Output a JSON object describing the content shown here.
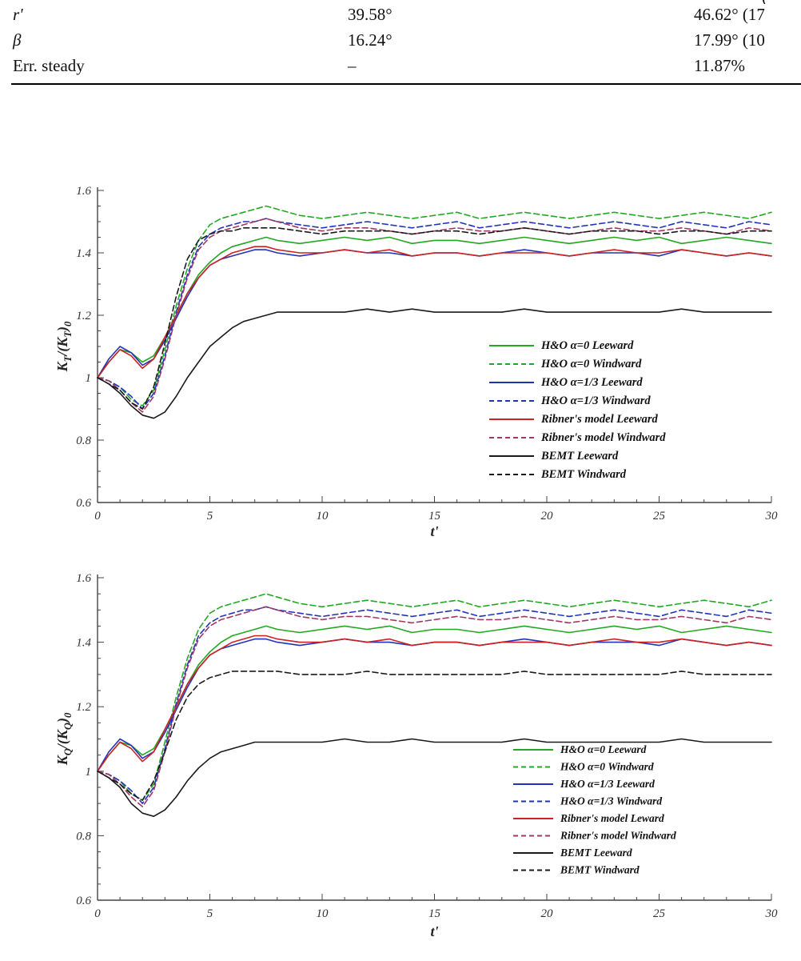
{
  "table": {
    "partial_fragments": [
      "("
    ],
    "rows": [
      {
        "label": "r'",
        "col1": "39.58°",
        "col2": "46.62° (17"
      },
      {
        "label": "β",
        "col1": "16.24°",
        "col2": "17.99° (10"
      },
      {
        "label": "Err. steady",
        "col1": "–",
        "col2": "11.87%"
      }
    ]
  },
  "chart_data": [
    {
      "type": "line",
      "title": "",
      "xlabel": "t'",
      "ylabel": "K_T/(K_T)_0",
      "xlim": [
        0,
        30
      ],
      "ylim": [
        0.6,
        1.6
      ],
      "xtick_major": 5,
      "xtick_minor": 1,
      "ytick_major": 0.2,
      "ytick_minor": 0.05,
      "grid": false,
      "legend_position": "inside-right-middle",
      "x": [
        0,
        0.5,
        1,
        1.5,
        2,
        2.5,
        3,
        3.5,
        4,
        4.5,
        5,
        5.5,
        6,
        6.5,
        7,
        7.5,
        8,
        9,
        10,
        11,
        12,
        13,
        14,
        15,
        16,
        17,
        18,
        19,
        20,
        21,
        22,
        23,
        24,
        25,
        26,
        27,
        28,
        29,
        30
      ],
      "series": [
        {
          "name": "H&O α=0 Leeward",
          "color": "#22a822",
          "dash": false,
          "values": [
            1.0,
            1.05,
            1.09,
            1.08,
            1.05,
            1.07,
            1.13,
            1.2,
            1.27,
            1.33,
            1.37,
            1.4,
            1.42,
            1.43,
            1.44,
            1.45,
            1.44,
            1.43,
            1.44,
            1.45,
            1.44,
            1.45,
            1.43,
            1.44,
            1.44,
            1.43,
            1.44,
            1.45,
            1.44,
            1.43,
            1.44,
            1.45,
            1.44,
            1.45,
            1.43,
            1.44,
            1.45,
            1.44,
            1.43
          ]
        },
        {
          "name": "H&O α=0 Windward",
          "color": "#22a822",
          "dash": true,
          "values": [
            1.0,
            0.99,
            0.97,
            0.93,
            0.91,
            0.96,
            1.09,
            1.23,
            1.35,
            1.44,
            1.49,
            1.51,
            1.52,
            1.53,
            1.54,
            1.55,
            1.54,
            1.52,
            1.51,
            1.52,
            1.53,
            1.52,
            1.51,
            1.52,
            1.53,
            1.51,
            1.52,
            1.53,
            1.52,
            1.51,
            1.52,
            1.53,
            1.52,
            1.51,
            1.52,
            1.53,
            1.52,
            1.51,
            1.53
          ]
        },
        {
          "name": "H&O α=1/3 Leeward",
          "color": "#2233bb",
          "dash": false,
          "values": [
            1.0,
            1.06,
            1.1,
            1.08,
            1.04,
            1.06,
            1.12,
            1.19,
            1.26,
            1.32,
            1.36,
            1.38,
            1.39,
            1.4,
            1.41,
            1.41,
            1.4,
            1.39,
            1.4,
            1.41,
            1.4,
            1.4,
            1.39,
            1.4,
            1.4,
            1.39,
            1.4,
            1.41,
            1.4,
            1.39,
            1.4,
            1.4,
            1.4,
            1.39,
            1.41,
            1.4,
            1.39,
            1.4,
            1.39
          ]
        },
        {
          "name": "H&O α=1/3 Windward",
          "color": "#2233bb",
          "dash": true,
          "values": [
            1.0,
            0.99,
            0.97,
            0.94,
            0.9,
            0.95,
            1.07,
            1.21,
            1.33,
            1.42,
            1.46,
            1.48,
            1.49,
            1.5,
            1.5,
            1.51,
            1.5,
            1.49,
            1.48,
            1.49,
            1.5,
            1.49,
            1.48,
            1.49,
            1.5,
            1.48,
            1.49,
            1.5,
            1.49,
            1.48,
            1.49,
            1.5,
            1.49,
            1.48,
            1.5,
            1.49,
            1.48,
            1.5,
            1.49
          ]
        },
        {
          "name": "Ribner's model Leeward",
          "color": "#cc2222",
          "dash": false,
          "values": [
            1.0,
            1.05,
            1.09,
            1.07,
            1.03,
            1.06,
            1.13,
            1.2,
            1.27,
            1.32,
            1.36,
            1.38,
            1.4,
            1.41,
            1.42,
            1.42,
            1.41,
            1.4,
            1.4,
            1.41,
            1.4,
            1.41,
            1.39,
            1.4,
            1.4,
            1.39,
            1.4,
            1.4,
            1.4,
            1.39,
            1.4,
            1.41,
            1.4,
            1.4,
            1.41,
            1.4,
            1.39,
            1.4,
            1.39
          ]
        },
        {
          "name": "Ribner's model Windward",
          "color": "#a03866",
          "dash": true,
          "values": [
            1.0,
            0.99,
            0.96,
            0.92,
            0.89,
            0.94,
            1.06,
            1.2,
            1.32,
            1.41,
            1.45,
            1.47,
            1.48,
            1.49,
            1.5,
            1.51,
            1.5,
            1.48,
            1.47,
            1.48,
            1.48,
            1.47,
            1.46,
            1.47,
            1.48,
            1.47,
            1.47,
            1.48,
            1.47,
            1.46,
            1.47,
            1.48,
            1.47,
            1.47,
            1.48,
            1.47,
            1.46,
            1.48,
            1.47
          ]
        },
        {
          "name": "BEMT Leeward",
          "color": "#1a1a1a",
          "dash": false,
          "values": [
            1.0,
            0.98,
            0.95,
            0.91,
            0.88,
            0.87,
            0.89,
            0.94,
            1.0,
            1.05,
            1.1,
            1.13,
            1.16,
            1.18,
            1.19,
            1.2,
            1.21,
            1.21,
            1.21,
            1.21,
            1.22,
            1.21,
            1.22,
            1.21,
            1.21,
            1.21,
            1.21,
            1.22,
            1.21,
            1.21,
            1.21,
            1.21,
            1.21,
            1.21,
            1.22,
            1.21,
            1.21,
            1.21,
            1.21
          ]
        },
        {
          "name": "BEMT Windward",
          "color": "#1a1a1a",
          "dash": true,
          "values": [
            1.0,
            0.98,
            0.96,
            0.92,
            0.9,
            0.97,
            1.11,
            1.26,
            1.38,
            1.44,
            1.46,
            1.47,
            1.47,
            1.48,
            1.48,
            1.48,
            1.48,
            1.47,
            1.46,
            1.47,
            1.47,
            1.47,
            1.46,
            1.47,
            1.47,
            1.46,
            1.47,
            1.48,
            1.47,
            1.46,
            1.47,
            1.47,
            1.47,
            1.46,
            1.47,
            1.47,
            1.46,
            1.47,
            1.47
          ]
        }
      ]
    },
    {
      "type": "line",
      "title": "",
      "xlabel": "t'",
      "ylabel": "K_Q/(K_Q)_0",
      "xlim": [
        0,
        30
      ],
      "ylim": [
        0.6,
        1.6
      ],
      "xtick_major": 5,
      "xtick_minor": 1,
      "ytick_major": 0.2,
      "ytick_minor": 0.05,
      "grid": false,
      "legend_position": "inside-right-lower",
      "x": [
        0,
        0.5,
        1,
        1.5,
        2,
        2.5,
        3,
        3.5,
        4,
        4.5,
        5,
        5.5,
        6,
        6.5,
        7,
        7.5,
        8,
        9,
        10,
        11,
        12,
        13,
        14,
        15,
        16,
        17,
        18,
        19,
        20,
        21,
        22,
        23,
        24,
        25,
        26,
        27,
        28,
        29,
        30
      ],
      "series": [
        {
          "name": "H&O α=0 Leeward",
          "color": "#22a822",
          "dash": false,
          "values": [
            1.0,
            1.05,
            1.09,
            1.08,
            1.05,
            1.07,
            1.13,
            1.2,
            1.27,
            1.33,
            1.37,
            1.4,
            1.42,
            1.43,
            1.44,
            1.45,
            1.44,
            1.43,
            1.44,
            1.45,
            1.44,
            1.45,
            1.43,
            1.44,
            1.44,
            1.43,
            1.44,
            1.45,
            1.44,
            1.43,
            1.44,
            1.45,
            1.44,
            1.45,
            1.43,
            1.44,
            1.45,
            1.44,
            1.43
          ]
        },
        {
          "name": "H&O α=0 Windward",
          "color": "#22a822",
          "dash": true,
          "values": [
            1.0,
            0.99,
            0.97,
            0.93,
            0.91,
            0.96,
            1.09,
            1.23,
            1.35,
            1.44,
            1.49,
            1.51,
            1.52,
            1.53,
            1.54,
            1.55,
            1.54,
            1.52,
            1.51,
            1.52,
            1.53,
            1.52,
            1.51,
            1.52,
            1.53,
            1.51,
            1.52,
            1.53,
            1.52,
            1.51,
            1.52,
            1.53,
            1.52,
            1.51,
            1.52,
            1.53,
            1.52,
            1.51,
            1.53
          ]
        },
        {
          "name": "H&O α=1/3 Leeward",
          "color": "#2233bb",
          "dash": false,
          "values": [
            1.0,
            1.06,
            1.1,
            1.08,
            1.04,
            1.06,
            1.12,
            1.19,
            1.26,
            1.32,
            1.36,
            1.38,
            1.39,
            1.4,
            1.41,
            1.41,
            1.4,
            1.39,
            1.4,
            1.41,
            1.4,
            1.4,
            1.39,
            1.4,
            1.4,
            1.39,
            1.4,
            1.41,
            1.4,
            1.39,
            1.4,
            1.4,
            1.4,
            1.39,
            1.41,
            1.4,
            1.39,
            1.4,
            1.39
          ]
        },
        {
          "name": "H&O α=1/3 Windward",
          "color": "#2233bb",
          "dash": true,
          "values": [
            1.0,
            0.99,
            0.97,
            0.94,
            0.9,
            0.95,
            1.07,
            1.21,
            1.33,
            1.42,
            1.46,
            1.48,
            1.49,
            1.5,
            1.5,
            1.51,
            1.5,
            1.49,
            1.48,
            1.49,
            1.5,
            1.49,
            1.48,
            1.49,
            1.5,
            1.48,
            1.49,
            1.5,
            1.49,
            1.48,
            1.49,
            1.5,
            1.49,
            1.48,
            1.5,
            1.49,
            1.48,
            1.5,
            1.49
          ]
        },
        {
          "name": "Ribner's model Leward",
          "color": "#cc2222",
          "dash": false,
          "values": [
            1.0,
            1.05,
            1.09,
            1.07,
            1.03,
            1.06,
            1.13,
            1.2,
            1.27,
            1.32,
            1.36,
            1.38,
            1.4,
            1.41,
            1.42,
            1.42,
            1.41,
            1.4,
            1.4,
            1.41,
            1.4,
            1.41,
            1.39,
            1.4,
            1.4,
            1.39,
            1.4,
            1.4,
            1.4,
            1.39,
            1.4,
            1.41,
            1.4,
            1.4,
            1.41,
            1.4,
            1.39,
            1.4,
            1.39
          ]
        },
        {
          "name": "Ribner's model Windward",
          "color": "#a03866",
          "dash": true,
          "values": [
            1.0,
            0.99,
            0.96,
            0.92,
            0.89,
            0.94,
            1.06,
            1.2,
            1.32,
            1.41,
            1.45,
            1.47,
            1.48,
            1.49,
            1.5,
            1.51,
            1.5,
            1.48,
            1.47,
            1.48,
            1.48,
            1.47,
            1.46,
            1.47,
            1.48,
            1.47,
            1.47,
            1.48,
            1.47,
            1.46,
            1.47,
            1.48,
            1.47,
            1.47,
            1.48,
            1.47,
            1.46,
            1.48,
            1.47
          ]
        },
        {
          "name": "BEMT Leeward",
          "color": "#1a1a1a",
          "dash": false,
          "values": [
            1.0,
            0.98,
            0.95,
            0.9,
            0.87,
            0.86,
            0.88,
            0.92,
            0.97,
            1.01,
            1.04,
            1.06,
            1.07,
            1.08,
            1.09,
            1.09,
            1.09,
            1.09,
            1.09,
            1.1,
            1.09,
            1.09,
            1.1,
            1.09,
            1.09,
            1.09,
            1.09,
            1.1,
            1.09,
            1.09,
            1.09,
            1.09,
            1.09,
            1.09,
            1.1,
            1.09,
            1.09,
            1.09,
            1.09
          ]
        },
        {
          "name": "BEMT Windward",
          "color": "#1a1a1a",
          "dash": true,
          "values": [
            1.0,
            0.98,
            0.96,
            0.93,
            0.91,
            0.97,
            1.06,
            1.16,
            1.23,
            1.27,
            1.29,
            1.3,
            1.31,
            1.31,
            1.31,
            1.31,
            1.31,
            1.3,
            1.3,
            1.3,
            1.31,
            1.3,
            1.3,
            1.3,
            1.3,
            1.3,
            1.3,
            1.31,
            1.3,
            1.3,
            1.3,
            1.3,
            1.3,
            1.3,
            1.31,
            1.3,
            1.3,
            1.3,
            1.3
          ]
        }
      ]
    }
  ]
}
